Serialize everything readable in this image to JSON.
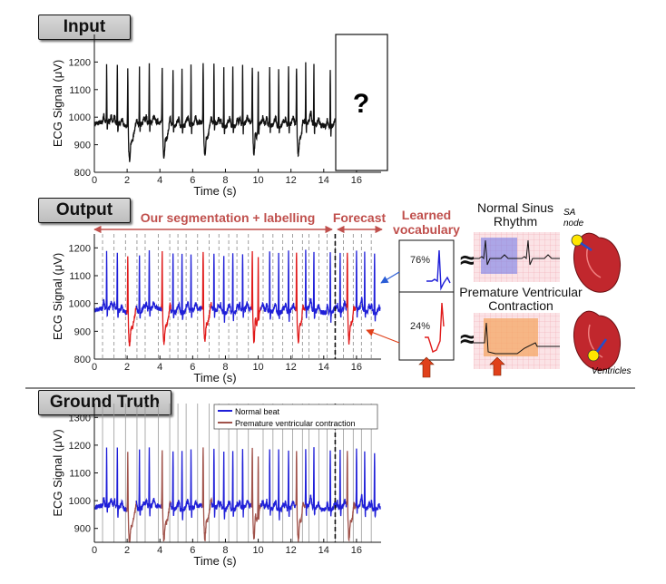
{
  "panels": {
    "input_label": "Input",
    "output_label": "Output",
    "truth_label": "Ground Truth"
  },
  "axes": {
    "ylabel": "ECG Signal (μV)",
    "xlabel": "Time (s)"
  },
  "input_panel": {
    "forecast_placeholder": "?"
  },
  "output_panel": {
    "segmentation_label": "Our segmentation + labelling",
    "forecast_label": "Forecast",
    "vocab_title_line1": "Learned",
    "vocab_title_line2": "vocabulary",
    "normal_pct": "76%",
    "pvc_pct": "24%",
    "normal_title_line1": "Normal Sinus",
    "normal_title_line2": "Rhythm",
    "pvc_title_line1": "Premature Ventricular",
    "pvc_title_line2": "Contraction",
    "approx_symbol": "≈",
    "sa_node_line1": "SA",
    "sa_node_line2": "node",
    "ventricles_label": "Ventricles"
  },
  "legend": {
    "normal": "Normal beat",
    "pvc": "Premature ventricular contraction"
  },
  "colors": {
    "normal": "#1f1fd8",
    "pvc": "#e01a1a",
    "truth_pvc": "#a0524a",
    "annotation": "#c0504d"
  },
  "chart_data": [
    {
      "type": "line",
      "name": "input",
      "xlim": [
        0,
        17.5
      ],
      "x_ticks": [
        0,
        2,
        4,
        6,
        8,
        10,
        12,
        14,
        16
      ],
      "ylim": [
        800,
        1300
      ],
      "y_ticks": [
        800,
        900,
        1000,
        1100,
        1200
      ],
      "xlabel": "Time (s)",
      "ylabel": "ECG Signal (μV)",
      "observed_until": 14.7,
      "normal_beats": [
        0.75,
        1.4,
        2.75,
        3.35,
        4.8,
        5.35,
        5.9,
        7.3,
        7.9,
        8.45,
        9.05,
        10.0,
        10.7,
        11.25,
        11.85,
        12.9,
        13.4,
        14.4
      ],
      "pvc_beats": [
        2.1,
        4.2,
        6.7,
        9.7,
        12.4
      ]
    },
    {
      "type": "line",
      "name": "output",
      "xlim": [
        0,
        17.5
      ],
      "x_ticks": [
        0,
        2,
        4,
        6,
        8,
        10,
        12,
        14,
        16
      ],
      "ylim": [
        800,
        1250
      ],
      "y_ticks": [
        800,
        900,
        1000,
        1100,
        1200
      ],
      "xlabel": "Time (s)",
      "ylabel": "ECG Signal (μV)",
      "forecast_start": 14.7,
      "normal_beats": [
        0.75,
        1.4,
        2.75,
        3.35,
        4.8,
        5.35,
        5.9,
        7.3,
        7.9,
        8.45,
        9.05,
        10.0,
        10.7,
        11.25,
        11.85,
        12.9,
        13.4,
        14.4,
        15.0,
        16.0,
        16.5,
        17.1
      ],
      "pvc_beats": [
        2.1,
        4.2,
        6.7,
        9.7,
        12.4,
        15.5
      ],
      "state_state_boundaries": [
        0.5,
        1.2,
        1.9,
        2.6,
        3.1,
        3.9,
        4.6,
        5.1,
        5.6,
        6.3,
        7.0,
        7.6,
        8.2,
        8.7,
        9.4,
        10.3,
        10.9,
        11.5,
        12.1,
        12.7,
        13.1,
        13.7,
        14.2,
        14.7,
        15.2,
        15.8,
        16.3,
        16.9
      ]
    },
    {
      "type": "line",
      "name": "ground_truth",
      "xlim": [
        0,
        17.5
      ],
      "x_ticks": [
        0,
        2,
        4,
        6,
        8,
        10,
        12,
        14,
        16
      ],
      "ylim": [
        850,
        1350
      ],
      "y_ticks": [
        900,
        1000,
        1100,
        1200,
        1300
      ],
      "xlabel": "Time (s)",
      "ylabel": "ECG Signal (μV)",
      "forecast_start": 14.7,
      "normal_beats": [
        0.75,
        1.4,
        2.75,
        3.35,
        4.8,
        5.35,
        5.9,
        7.3,
        7.9,
        8.45,
        9.05,
        10.0,
        10.7,
        11.25,
        11.85,
        12.9,
        13.4,
        14.4,
        15.0,
        16.0,
        16.5,
        17.1
      ],
      "pvc_beats": [
        2.1,
        4.2,
        6.7,
        9.7,
        12.4,
        15.5
      ],
      "series": [
        {
          "name": "Normal beat"
        },
        {
          "name": "Premature ventricular contraction"
        }
      ]
    }
  ]
}
